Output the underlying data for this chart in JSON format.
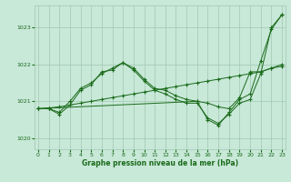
{
  "xlabel": "Graphe pression niveau de la mer (hPa)",
  "background_color": "#c8e8d8",
  "grid_color": "#a0c8b0",
  "line_color": "#1a6b1a",
  "ylim": [
    1019.7,
    1023.6
  ],
  "yticks": [
    1020,
    1021,
    1022,
    1023
  ],
  "xlim": [
    -0.3,
    23.3
  ],
  "xticks": [
    0,
    1,
    2,
    3,
    4,
    5,
    6,
    7,
    8,
    9,
    10,
    11,
    12,
    13,
    14,
    15,
    16,
    17,
    18,
    19,
    20,
    21,
    22,
    23
  ],
  "series": [
    {
      "x": [
        0,
        1,
        2,
        3,
        4,
        5,
        6,
        7,
        8,
        9,
        10,
        11,
        12,
        13,
        14,
        15,
        16,
        17,
        18,
        19,
        20,
        21,
        22,
        23
      ],
      "y": [
        1020.8,
        1020.82,
        1020.85,
        1020.9,
        1020.95,
        1021.0,
        1021.05,
        1021.1,
        1021.15,
        1021.2,
        1021.25,
        1021.3,
        1021.35,
        1021.4,
        1021.45,
        1021.5,
        1021.55,
        1021.6,
        1021.65,
        1021.7,
        1021.75,
        1021.8,
        1021.9,
        1022.0
      ]
    },
    {
      "x": [
        0,
        1,
        2,
        3,
        4,
        5,
        6,
        7,
        8,
        9,
        10,
        11,
        12,
        13,
        14,
        15,
        16,
        17,
        18,
        19,
        20,
        21,
        22,
        23
      ],
      "y": [
        1020.8,
        1020.8,
        1020.7,
        1021.0,
        1021.35,
        1021.5,
        1021.75,
        1021.9,
        1022.05,
        1021.9,
        1021.6,
        1021.35,
        1021.3,
        1021.15,
        1021.05,
        1021.0,
        1020.95,
        1020.85,
        1020.8,
        1021.1,
        1021.8,
        1021.8,
        1021.9,
        1021.95
      ]
    },
    {
      "x": [
        0,
        1,
        2,
        3,
        4,
        5,
        6,
        7,
        8,
        9,
        10,
        11,
        12,
        13,
        14,
        15,
        16,
        17,
        18,
        19,
        20,
        21,
        22,
        23
      ],
      "y": [
        1020.8,
        1020.8,
        1020.65,
        1020.9,
        1021.3,
        1021.45,
        1021.8,
        1021.85,
        1022.05,
        1021.85,
        1021.55,
        1021.3,
        1021.2,
        1021.05,
        1020.95,
        1020.95,
        1020.55,
        1020.4,
        1020.65,
        1020.95,
        1021.05,
        1021.75,
        1023.0,
        1023.35
      ]
    },
    {
      "x": [
        0,
        15,
        16,
        17,
        18,
        19,
        20,
        21,
        22,
        23
      ],
      "y": [
        1020.8,
        1021.0,
        1020.5,
        1020.35,
        1020.7,
        1021.05,
        1021.2,
        1022.1,
        1022.95,
        1023.35
      ]
    }
  ]
}
